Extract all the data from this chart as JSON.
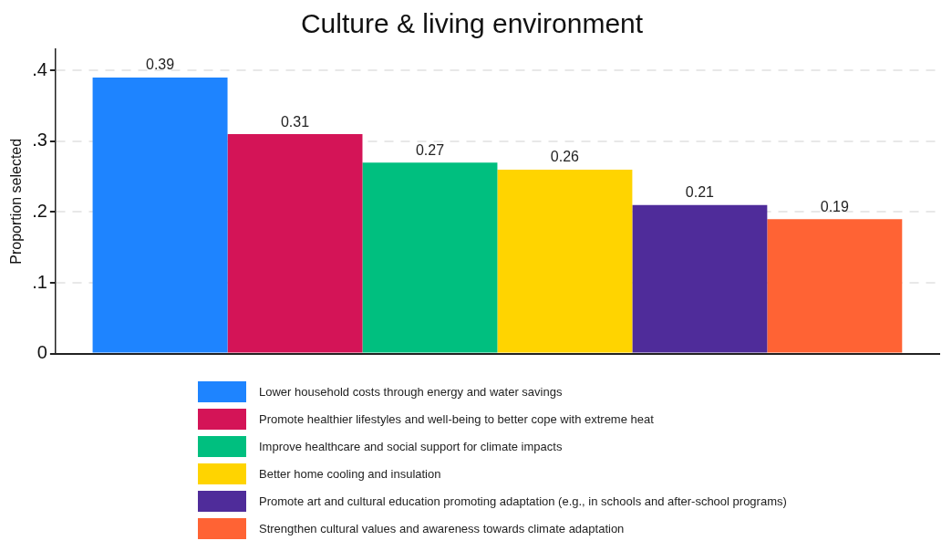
{
  "chart_data": {
    "type": "bar",
    "title": "Culture & living environment",
    "ylabel": "Proportion selected",
    "categories": [
      null
    ],
    "series": [
      {
        "name": "Lower household costs through energy and water savings",
        "color": "#1e84ff",
        "values": [
          0.39
        ]
      },
      {
        "name": "Promote healthier lifestyles and well-being to better cope with extreme heat",
        "color": "#d41457",
        "values": [
          0.31
        ]
      },
      {
        "name": "Improve healthcare and social support for climate impacts",
        "color": "#00bf7f",
        "values": [
          0.27
        ]
      },
      {
        "name": "Better home cooling and insulation",
        "color": "#ffd400",
        "values": [
          0.26
        ]
      },
      {
        "name": "Promote art and cultural education promoting adaptation (e.g., in schools and after-school programs)",
        "color": "#4f2c9a",
        "values": [
          0.21
        ]
      },
      {
        "name": "Strengthen cultural values and awareness towards climate adaptation",
        "color": "#ff6334",
        "values": [
          0.19
        ]
      }
    ],
    "ylim": [
      0,
      0.43
    ],
    "yticks": [
      {
        "value": 0,
        "label": "0"
      },
      {
        "value": 0.1,
        "label": ".1"
      },
      {
        "value": 0.2,
        "label": ".2"
      },
      {
        "value": 0.3,
        "label": ".3"
      },
      {
        "value": 0.4,
        "label": ".4"
      }
    ],
    "grid": "y",
    "legend": "bottom",
    "data_labels": true
  }
}
